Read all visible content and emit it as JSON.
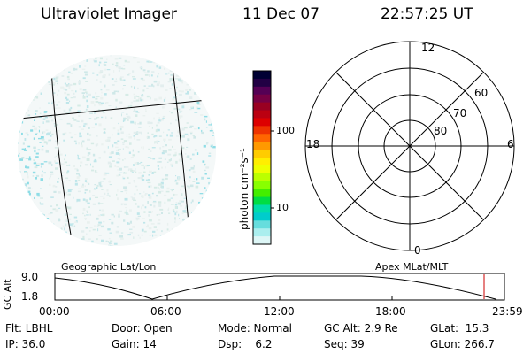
{
  "header": {
    "title": "Ultraviolet Imager",
    "date": "11 Dec 07",
    "time": "22:57:25 UT"
  },
  "left_panel": {
    "caption": "Geographic Lat/Lon"
  },
  "colorbar": {
    "unit_label": "photon cm⁻²s⁻¹",
    "ticks": [
      "100",
      "10"
    ],
    "colors": [
      "#000033",
      "#220044",
      "#550055",
      "#770044",
      "#990022",
      "#bb0011",
      "#dd0000",
      "#ee3300",
      "#ff6600",
      "#ff9900",
      "#ffcc00",
      "#ffee00",
      "#eeff00",
      "#bbff00",
      "#88ff00",
      "#44ee00",
      "#00dd44",
      "#00ddaa",
      "#00cccc",
      "#66dddd",
      "#aaeeee",
      "#ddf6f6"
    ]
  },
  "right_panel": {
    "caption": "Apex MLat/MLT",
    "mlt_labels": {
      "top": "12",
      "left": "18",
      "right": "6",
      "bottom": "0"
    },
    "mlat_labels": [
      "60",
      "70",
      "80"
    ]
  },
  "altitude_plot": {
    "ylabel": "GC Alt",
    "yticks": [
      "9.0",
      "1.8"
    ],
    "xticks": [
      "00:00",
      "06:00",
      "12:00",
      "18:00",
      "23:59"
    ],
    "marker_color": "#cc0000"
  },
  "info": {
    "row1": {
      "flt": "Flt: LBHL",
      "door": "Door: Open",
      "mode": "Mode: Normal",
      "gcalt": "GC Alt: 2.9 Re",
      "glat": "GLat:  15.3"
    },
    "row2": {
      "ip": "IP: 36.0",
      "gain": "Gain: 14",
      "dsp": "Dsp:    6.2",
      "seq": "Seq: 39",
      "glon": "GLon: 266.7"
    }
  }
}
